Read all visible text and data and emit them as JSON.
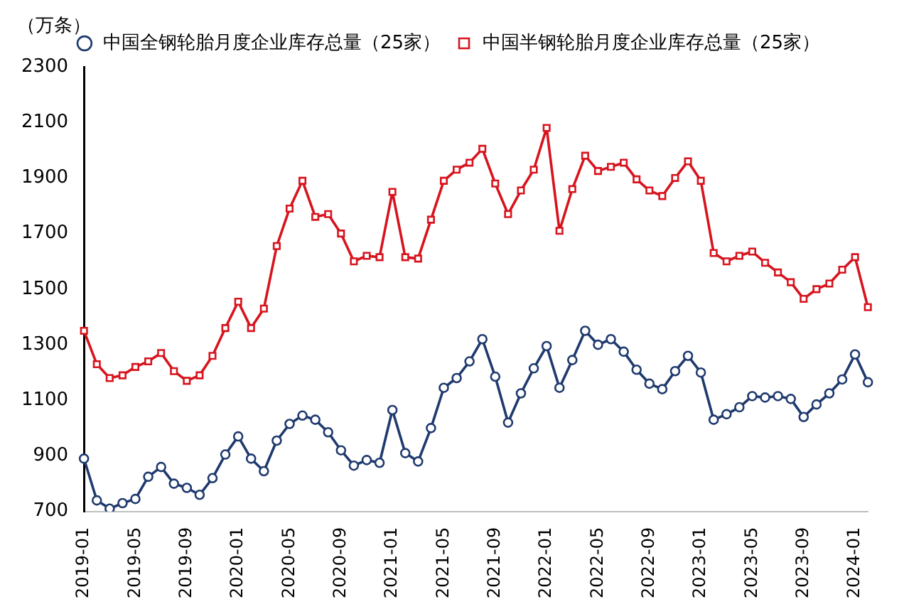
{
  "chart_data": {
    "type": "line",
    "ylabel": "（万条）",
    "legend": "top",
    "grid": false,
    "categories": [
      "2019-01",
      null,
      null,
      null,
      "2019-05",
      null,
      null,
      null,
      "2019-09",
      null,
      null,
      null,
      "2020-01",
      null,
      null,
      null,
      "2020-05",
      null,
      null,
      null,
      "2020-09",
      null,
      null,
      null,
      "2021-01",
      null,
      null,
      null,
      "2021-05",
      null,
      null,
      null,
      "2021-09",
      null,
      null,
      null,
      "2022-01",
      null,
      null,
      null,
      "2022-05",
      null,
      null,
      null,
      "2022-09",
      null,
      null,
      null,
      "2023-01",
      null,
      null,
      null,
      "2023-05",
      null,
      null,
      null,
      "2023-09",
      null,
      null,
      null,
      "2024-01",
      null
    ],
    "ylim": [
      700,
      2300
    ],
    "yticks": [
      700,
      900,
      1100,
      1300,
      1500,
      1700,
      1900,
      2100,
      2300
    ],
    "series": [
      {
        "name": "中国全钢轮胎月度企业库存总量（25家）",
        "color": "#1f3a6e",
        "marker": "circle",
        "values": [
          890,
          740,
          710,
          730,
          745,
          825,
          860,
          800,
          785,
          760,
          820,
          905,
          970,
          890,
          845,
          955,
          1015,
          1045,
          1030,
          985,
          920,
          865,
          885,
          875,
          1065,
          910,
          880,
          1000,
          1145,
          1180,
          1240,
          1320,
          1185,
          1020,
          1125,
          1215,
          1295,
          1145,
          1245,
          1350,
          1300,
          1320,
          1275,
          1210,
          1160,
          1140,
          1205,
          1260,
          1200,
          1030,
          1050,
          1075,
          1115,
          1110,
          1115,
          1105,
          1040,
          1085,
          1125,
          1175,
          1265,
          1165
        ]
      },
      {
        "name": "中国半钢轮胎月度企业库存总量（25家）",
        "color": "#d7141e",
        "marker": "square",
        "values": [
          1350,
          1230,
          1180,
          1190,
          1220,
          1240,
          1270,
          1205,
          1170,
          1190,
          1260,
          1360,
          1455,
          1360,
          1430,
          1655,
          1790,
          1890,
          1760,
          1770,
          1700,
          1600,
          1620,
          1615,
          1850,
          1615,
          1610,
          1750,
          1890,
          1930,
          1955,
          2005,
          1880,
          1770,
          1855,
          1930,
          2080,
          1710,
          1860,
          1980,
          1925,
          1940,
          1955,
          1895,
          1855,
          1835,
          1900,
          1960,
          1890,
          1630,
          1600,
          1620,
          1635,
          1595,
          1560,
          1525,
          1465,
          1500,
          1520,
          1570,
          1615,
          1435
        ]
      }
    ]
  }
}
